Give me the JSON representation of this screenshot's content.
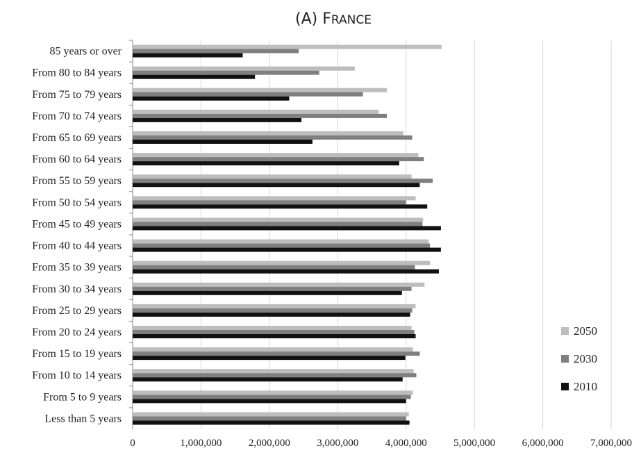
{
  "chart_data": {
    "type": "bar",
    "orientation": "horizontal",
    "title": "(A) France",
    "xlabel": "",
    "ylabel": "",
    "xlim": [
      0,
      7000000
    ],
    "x_ticks": [
      0,
      1000000,
      2000000,
      3000000,
      4000000,
      5000000,
      6000000,
      7000000
    ],
    "x_tick_labels": [
      "0",
      "1,000,000",
      "2,000,000",
      "3,000,000",
      "4,000,000",
      "5,000,000",
      "6,000,000",
      "7,000,000"
    ],
    "grid": "vertical",
    "legend_position": "right",
    "categories": [
      "85 years or over",
      "From 80 to 84 years",
      "From 75 to 79 years",
      "From 70 to 74 years",
      "From 65 to 69 years",
      "From 60 to 64 years",
      "From 55 to 59 years",
      "From 50 to 54 years",
      "From 45 to 49 years",
      "From 40 to 44 years",
      "From 35 to 39 years",
      "From 30 to 34 years",
      "From 25 to 29 years",
      "From 20 to 24 years",
      "From 15 to 19 years",
      "From 10 to 14 years",
      "From 5 to 9 years",
      "Less than 5 years"
    ],
    "series": [
      {
        "name": "2050",
        "color": "#bdbdbd",
        "values": [
          4520000,
          3250000,
          3720000,
          3600000,
          3960000,
          4180000,
          4080000,
          4140000,
          4250000,
          4330000,
          4350000,
          4270000,
          4140000,
          4080000,
          4100000,
          4110000,
          4100000,
          4040000
        ]
      },
      {
        "name": "2030",
        "color": "#7f7f7f",
        "values": [
          2430000,
          2730000,
          3370000,
          3720000,
          4090000,
          4260000,
          4390000,
          4000000,
          4240000,
          4350000,
          4130000,
          4080000,
          4090000,
          4120000,
          4200000,
          4150000,
          4070000,
          4000000
        ]
      },
      {
        "name": "2010",
        "color": "#111111",
        "values": [
          1610000,
          1790000,
          2290000,
          2470000,
          2630000,
          3900000,
          4200000,
          4310000,
          4510000,
          4510000,
          4480000,
          3940000,
          4060000,
          4140000,
          3990000,
          3950000,
          4000000,
          4050000
        ]
      }
    ],
    "legend_order": [
      "2050",
      "2030",
      "2010"
    ]
  }
}
